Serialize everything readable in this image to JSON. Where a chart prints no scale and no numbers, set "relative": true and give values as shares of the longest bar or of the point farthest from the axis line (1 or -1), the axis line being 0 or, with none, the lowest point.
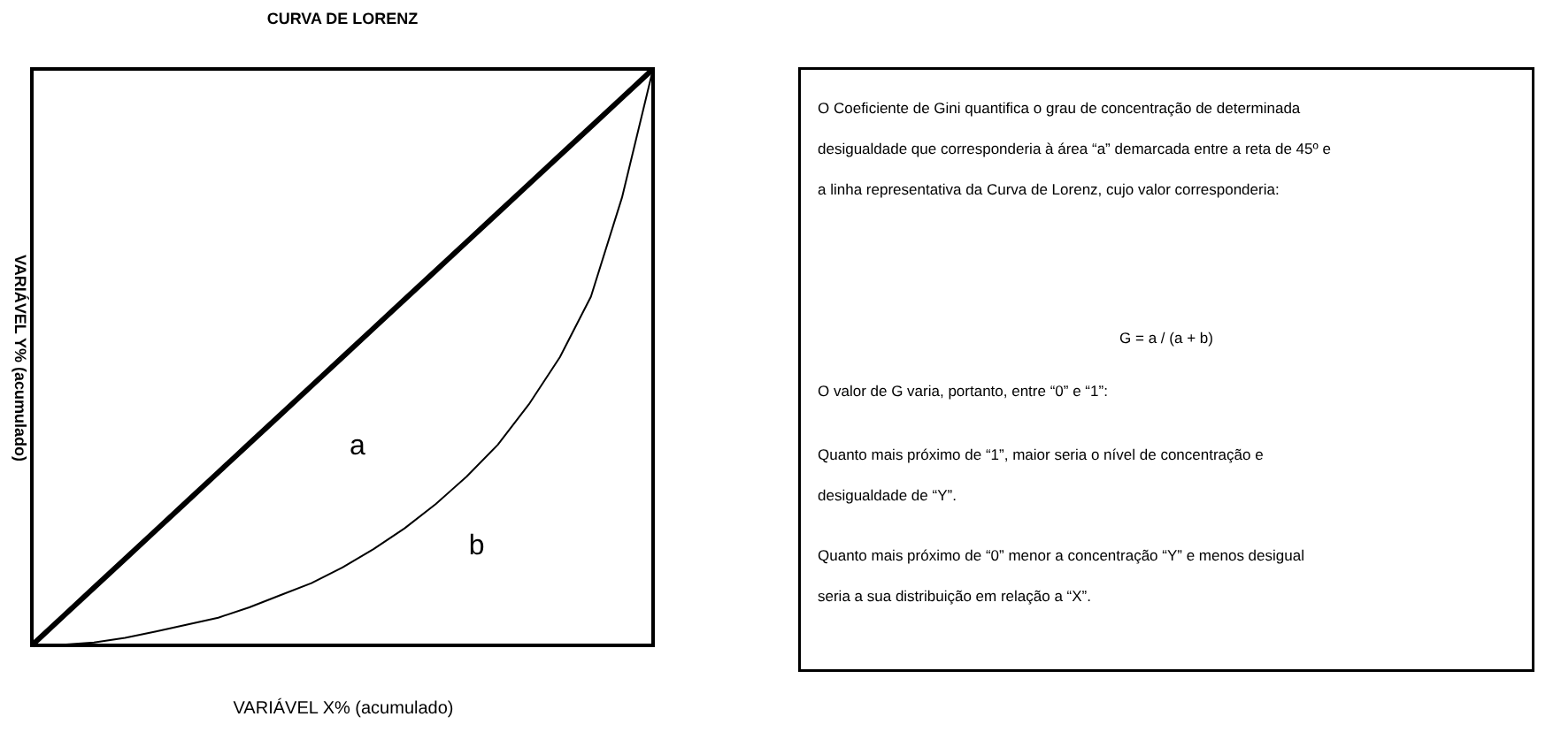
{
  "chart_data": [
    {
      "type": "line",
      "title": "CURVA DE LORENZ",
      "xlabel": "VARIÁVEL X% (acumulado)",
      "ylabel": "VARIÁVEL Y% (acumulado)",
      "relative": true,
      "marker": "none",
      "line_style": "solid",
      "categories": [
        null,
        null,
        null,
        null,
        null,
        null,
        null,
        null,
        null,
        null,
        null,
        null,
        null,
        null,
        null,
        null,
        null,
        null,
        null,
        null,
        null
      ],
      "series": [
        {
          "color": "#000000",
          "values": [
            0,
            0.05,
            0.1,
            0.15,
            0.2,
            0.25,
            0.3,
            0.35,
            0.4,
            0.45,
            0.5,
            0.55,
            0.6,
            0.65,
            0.7,
            0.75,
            0.8,
            0.85,
            0.9,
            0.95,
            1
          ]
        },
        {
          "color": "#000000",
          "values": [
            0,
            0.001,
            0.005,
            0.013,
            0.024,
            0.036,
            0.048,
            0.066,
            0.087,
            0.108,
            0.135,
            0.167,
            0.203,
            0.245,
            0.293,
            0.348,
            0.418,
            0.5,
            0.605,
            0.777,
            1
          ]
        }
      ],
      "annotations": [
        "a",
        "b"
      ]
    },
    {
      "type": "other",
      "annotations": [
        "O Coeficiente de Gini quantifica o grau de concentração de determinada\ndesigualdade que corresponderia à área “a” demarcada entre a reta de 45º e\na linha representativa da Curva de Lorenz, cujo valor corresponderia:",
        "G = a / (a + b)",
        "O valor de G varia, portanto, entre “0” e “1”:",
        "Quanto mais próximo de “1”, maior seria o nível de concentração e\ndesigualdade de “Y”.",
        "Quanto mais próximo de “0” menor a concentração “Y” e menos desigual\nseria a sua distribuição em relação a “X”."
      ]
    }
  ]
}
